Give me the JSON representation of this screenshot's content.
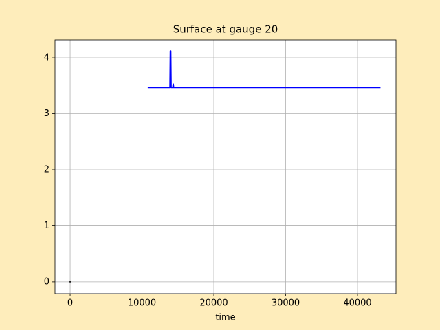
{
  "chart_data": {
    "type": "line",
    "title": "Surface at gauge 20",
    "xlabel": "time",
    "series": [
      {
        "color": "#0000ff",
        "x": [
          10800,
          13900,
          13950,
          14000,
          14050,
          14300,
          14350,
          14400,
          43200
        ],
        "values": [
          3.47,
          3.47,
          4.12,
          4.12,
          3.47,
          3.47,
          3.53,
          3.47,
          3.47
        ]
      },
      {
        "color": "#000000",
        "x": [
          0
        ],
        "values": [
          0
        ]
      }
    ],
    "xlim": [
      -2110,
      45360
    ],
    "xticks": [
      0,
      10000,
      20000,
      30000,
      40000
    ],
    "ylim": [
      -0.21,
      4.32
    ],
    "yticks": [
      0,
      1,
      2,
      3,
      4
    ],
    "grid": true
  }
}
